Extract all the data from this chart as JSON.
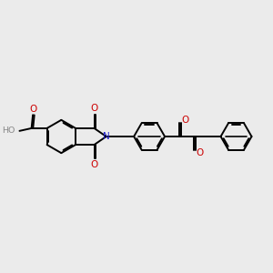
{
  "background_color": "#ebebeb",
  "bond_color": "#000000",
  "nitrogen_color": "#2222cc",
  "oxygen_color": "#cc0000",
  "line_width": 1.4,
  "dbl_sep": 0.055,
  "figsize": [
    3.0,
    3.0
  ],
  "dpi": 100,
  "xlim": [
    0,
    10
  ],
  "ylim": [
    2.0,
    8.0
  ]
}
